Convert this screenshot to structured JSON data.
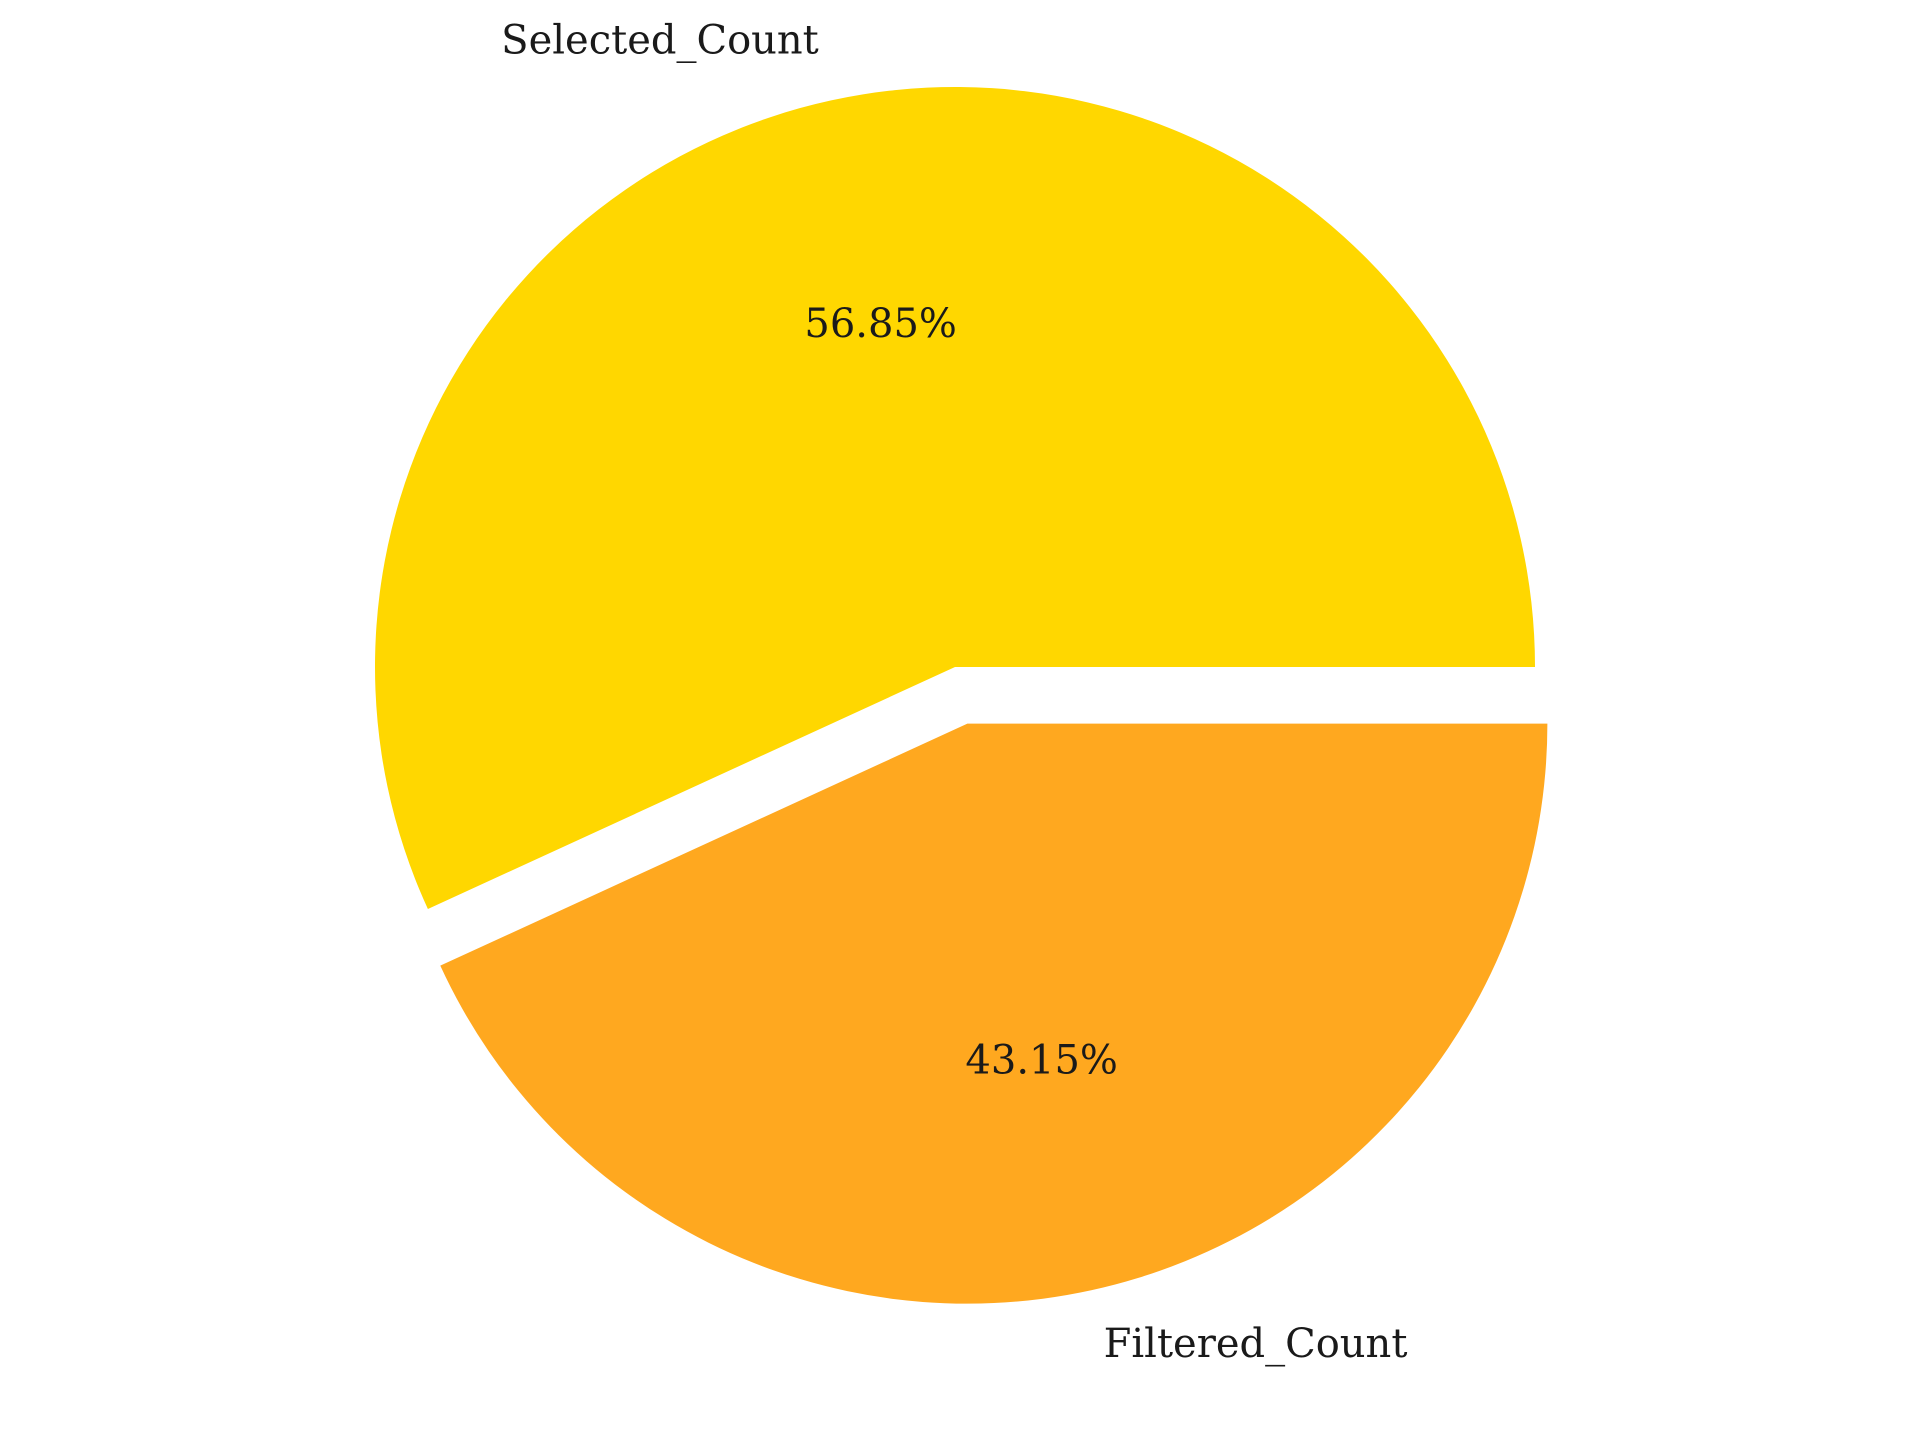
{
  "chart_data": {
    "type": "pie",
    "title": "",
    "legend": "none",
    "start_angle_deg": 0,
    "direction": "counterclockwise",
    "slices": [
      {
        "label": "Selected_Count",
        "percent": 56.85,
        "percent_label": "56.85%",
        "color": "#FFD700",
        "explode": 0.0
      },
      {
        "label": "Filtered_Count",
        "percent": 43.15,
        "percent_label": "43.15%",
        "color": "#FFA81F",
        "explode": 0.1
      }
    ]
  }
}
